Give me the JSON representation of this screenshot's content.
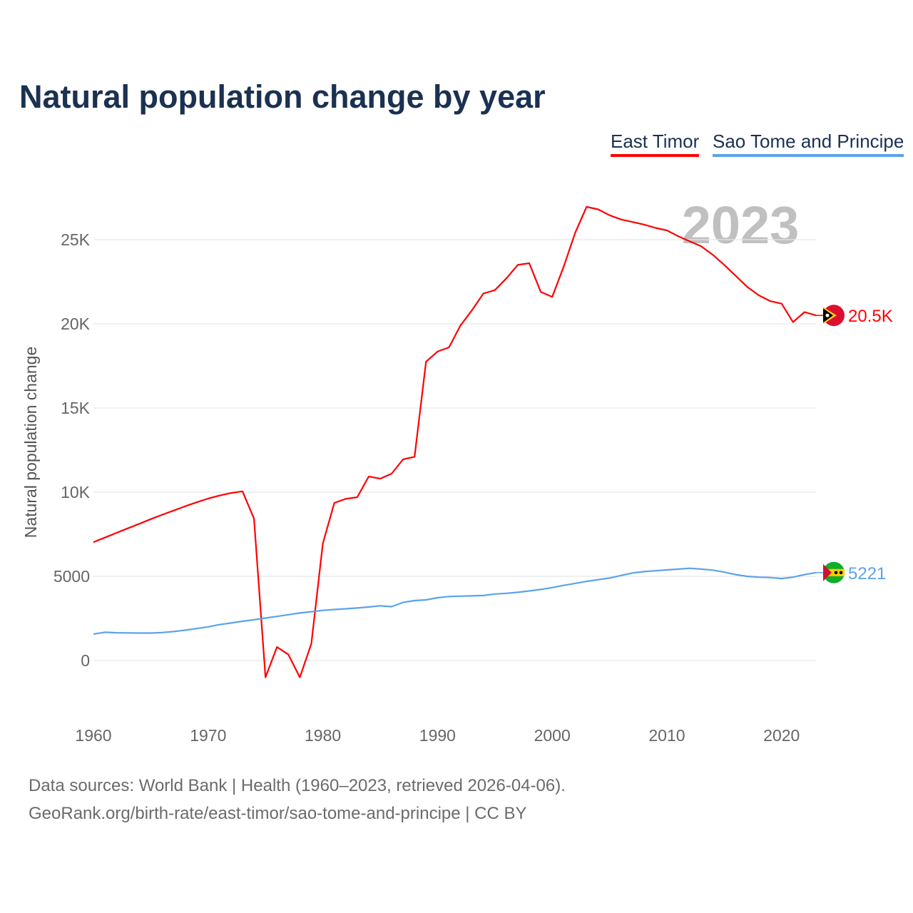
{
  "title": "Natural population change by year",
  "legend": [
    "East Timor",
    "Sao Tome and Principe"
  ],
  "year_watermark": "2023",
  "footer": {
    "line1": "Data sources: World Bank | Health (1960–2023, retrieved 2026-04-06).",
    "line2": "GeoRank.org/birth-rate/east-timor/sao-tome-and-principe | CC BY"
  },
  "chart_data": {
    "type": "line",
    "title": "Natural population change by year",
    "xlabel": "",
    "ylabel": "Natural population change",
    "xlim": [
      1960,
      2023
    ],
    "ylim": [
      -3000,
      28000
    ],
    "x_ticks": [
      1960,
      1970,
      1980,
      1990,
      2000,
      2010,
      2020
    ],
    "x_tick_labels": [
      "1960",
      "1970",
      "1980",
      "1990",
      "2000",
      "2010",
      "2020"
    ],
    "y_ticks": [
      0,
      5000,
      10000,
      15000,
      20000,
      25000
    ],
    "y_tick_labels": [
      "0",
      "5000",
      "10K",
      "15K",
      "20K",
      "25K"
    ],
    "grid": true,
    "legend_position": "top-right",
    "x_start": 1960,
    "series": [
      {
        "name": "East Timor",
        "color": "#ff0000",
        "end_label": "20.5K",
        "flag_icon": "east-timor-flag-icon",
        "values": [
          7030,
          7300,
          7580,
          7850,
          8120,
          8400,
          8660,
          8910,
          9160,
          9400,
          9620,
          9800,
          9950,
          10050,
          8430,
          -1000,
          800,
          350,
          -1000,
          1000,
          6950,
          9360,
          9600,
          9700,
          10930,
          10800,
          11100,
          11950,
          12100,
          17750,
          18350,
          18600,
          19900,
          20800,
          21800,
          22000,
          22700,
          23500,
          23600,
          21900,
          21600,
          23400,
          25400,
          26950,
          26800,
          26450,
          26200,
          26050,
          25900,
          25700,
          25550,
          25200,
          24900,
          24600,
          24100,
          23500,
          22850,
          22200,
          21700,
          21350,
          21200,
          20100,
          20700,
          20500
        ]
      },
      {
        "name": "Sao Tome and Principe",
        "color": "#5ba3e8",
        "end_label": "5221",
        "flag_icon": "sao-tome-flag-icon",
        "values": [
          1570,
          1680,
          1650,
          1640,
          1630,
          1630,
          1660,
          1720,
          1800,
          1900,
          2000,
          2130,
          2230,
          2330,
          2420,
          2520,
          2620,
          2720,
          2820,
          2900,
          2980,
          3030,
          3070,
          3120,
          3180,
          3250,
          3200,
          3450,
          3560,
          3600,
          3730,
          3800,
          3820,
          3840,
          3860,
          3950,
          3990,
          4050,
          4130,
          4220,
          4330,
          4460,
          4580,
          4700,
          4800,
          4900,
          5050,
          5200,
          5280,
          5330,
          5380,
          5430,
          5480,
          5430,
          5370,
          5250,
          5100,
          5000,
          4950,
          4930,
          4870,
          4950,
          5100,
          5221
        ]
      }
    ]
  }
}
